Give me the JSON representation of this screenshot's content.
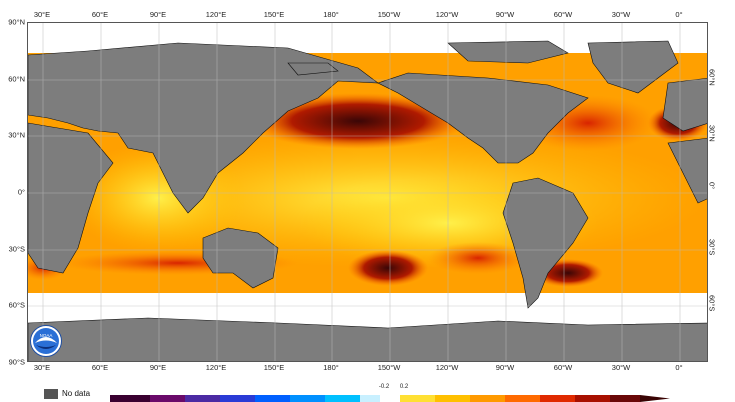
{
  "map": {
    "lon_ticks_top": [
      "30°E",
      "60°E",
      "90°E",
      "120°E",
      "150°E",
      "180°",
      "150°W",
      "120°W",
      "90°W",
      "60°W",
      "30°W",
      "0°"
    ],
    "lon_ticks_bottom": [
      "30°E",
      "60°E",
      "90°E",
      "120°E",
      "150°E",
      "180°",
      "150°W",
      "120°W",
      "90°W",
      "60°W",
      "30°W",
      "0°"
    ],
    "lat_ticks_left": [
      "90°N",
      "60°N",
      "30°N",
      "0°",
      "30°S",
      "60°S",
      "90°S"
    ],
    "lat_ticks_right": [
      "60°N",
      "30°N",
      "0°",
      "30°S",
      "60°S"
    ],
    "colors": {
      "land": "#7d7d7d",
      "ice": "#ffffff",
      "warm_low": "#ffe033",
      "warm_mid": "#ff8a00",
      "warm_high": "#e02a00",
      "warm_max": "#4a0a0a"
    }
  },
  "legend": {
    "no_data_label": "No data",
    "colorbar_labels": [
      "-0.2",
      "0.2"
    ]
  },
  "logo": {
    "name": "noaa-logo",
    "text": "NOAA"
  }
}
